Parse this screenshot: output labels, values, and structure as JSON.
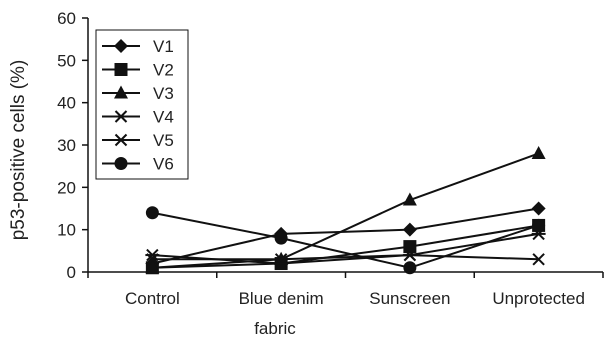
{
  "chart_data": {
    "type": "line",
    "ylabel": "p53-positive cells (%)",
    "xlabel": "",
    "categories": [
      "Control",
      "Blue denim",
      "Sunscreen",
      "Unprotected"
    ],
    "category_suffix": "fabric",
    "ylim": [
      0,
      60
    ],
    "yticks": [
      "0",
      "10",
      "20",
      "30",
      "40",
      "50",
      "60"
    ],
    "grid": false,
    "legend_position": "top-left",
    "series": [
      {
        "name": "V1",
        "marker": "diamond",
        "values": [
          2,
          9,
          10,
          15
        ]
      },
      {
        "name": "V2",
        "marker": "square",
        "values": [
          1,
          2,
          6,
          11
        ]
      },
      {
        "name": "V3",
        "marker": "triangle",
        "values": [
          1,
          3,
          17,
          28
        ]
      },
      {
        "name": "V4",
        "marker": "x",
        "values": [
          3,
          3,
          4,
          3
        ]
      },
      {
        "name": "V5",
        "marker": "asterisk",
        "values": [
          4,
          2,
          4,
          9
        ]
      },
      {
        "name": "V6",
        "marker": "circle",
        "values": [
          14,
          8,
          1,
          11
        ]
      }
    ]
  }
}
